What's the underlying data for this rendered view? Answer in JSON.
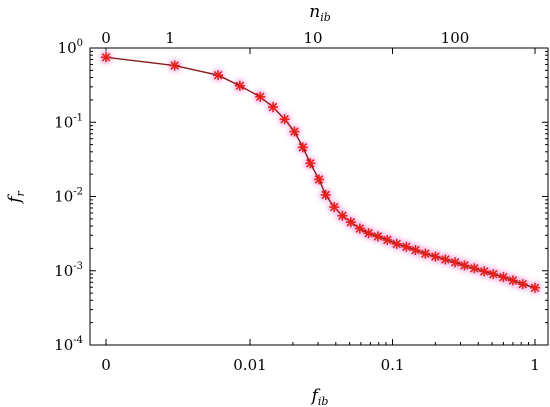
{
  "chart_data": {
    "type": "line",
    "xlabel": "f",
    "xlabel_sub": "ib",
    "ylabel": "f",
    "ylabel_sub": "r",
    "top_xlabel": "n",
    "top_xlabel_sub": "ib",
    "x_scale": "log-with-zero",
    "y_scale": "log",
    "ylim": [
      0.0001,
      1
    ],
    "x_tick_labels": [
      "0",
      "0.01",
      "0.1",
      "1"
    ],
    "y_tick_labels": [
      {
        "base": "10",
        "exp": "0"
      },
      {
        "base": "10",
        "exp": "-1"
      },
      {
        "base": "10",
        "exp": "-2"
      },
      {
        "base": "10",
        "exp": "-3"
      },
      {
        "base": "10",
        "exp": "-4"
      }
    ],
    "top_tick_labels": [
      "0",
      "1",
      "10",
      "100"
    ],
    "colors": {
      "line": "#8b1a1a",
      "marker": "#e8201a",
      "halo": "#f5b8e8"
    },
    "series": [
      {
        "marker": "asterisk",
        "points": [
          {
            "x": 0,
            "y": 0.75
          },
          {
            "x": 0.003,
            "y": 0.58
          },
          {
            "x": 0.006,
            "y": 0.43
          },
          {
            "x": 0.0085,
            "y": 0.31
          },
          {
            "x": 0.0118,
            "y": 0.22
          },
          {
            "x": 0.0145,
            "y": 0.16
          },
          {
            "x": 0.0175,
            "y": 0.11
          },
          {
            "x": 0.0205,
            "y": 0.075
          },
          {
            "x": 0.0235,
            "y": 0.046
          },
          {
            "x": 0.0265,
            "y": 0.028
          },
          {
            "x": 0.0305,
            "y": 0.017
          },
          {
            "x": 0.034,
            "y": 0.0105
          },
          {
            "x": 0.039,
            "y": 0.0072
          },
          {
            "x": 0.0445,
            "y": 0.0055
          },
          {
            "x": 0.051,
            "y": 0.0045
          },
          {
            "x": 0.059,
            "y": 0.0037
          },
          {
            "x": 0.068,
            "y": 0.0032
          },
          {
            "x": 0.079,
            "y": 0.0029
          },
          {
            "x": 0.092,
            "y": 0.0026
          },
          {
            "x": 0.107,
            "y": 0.0023
          },
          {
            "x": 0.125,
            "y": 0.0021
          },
          {
            "x": 0.145,
            "y": 0.0019
          },
          {
            "x": 0.17,
            "y": 0.0017
          },
          {
            "x": 0.2,
            "y": 0.00155
          },
          {
            "x": 0.235,
            "y": 0.00142
          },
          {
            "x": 0.275,
            "y": 0.0013
          },
          {
            "x": 0.32,
            "y": 0.00118
          },
          {
            "x": 0.375,
            "y": 0.00108
          },
          {
            "x": 0.44,
            "y": 0.00098
          },
          {
            "x": 0.51,
            "y": 0.0009
          },
          {
            "x": 0.6,
            "y": 0.00082
          },
          {
            "x": 0.7,
            "y": 0.00074
          },
          {
            "x": 0.82,
            "y": 0.00066
          },
          {
            "x": 1.0,
            "y": 0.00059
          }
        ]
      }
    ]
  }
}
